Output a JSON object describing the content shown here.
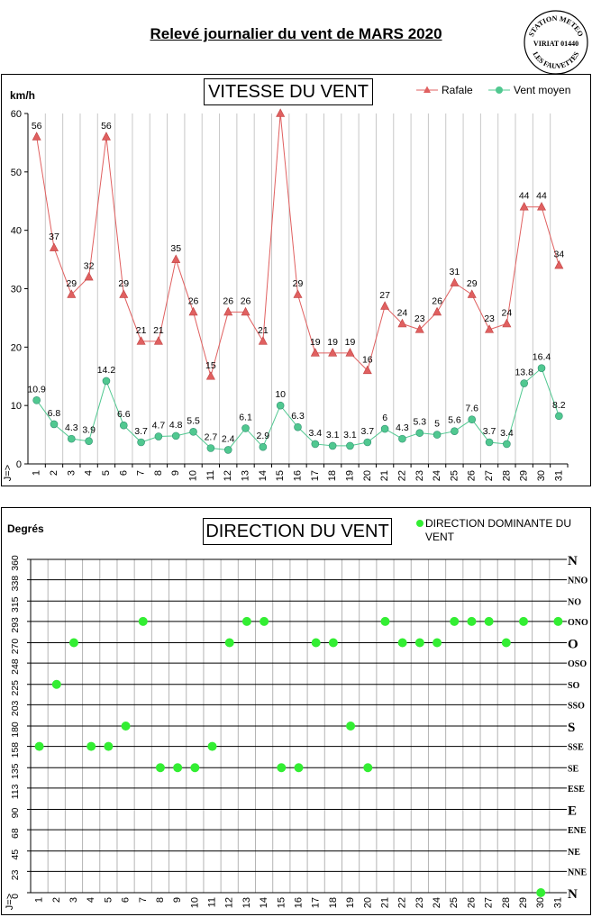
{
  "title": "Relevé journalier du vent de MARS 2020",
  "stamp": {
    "lines": [
      "STATION METEO",
      "VIRIAT 01440",
      "LES FAUVETTES"
    ]
  },
  "colors": {
    "rafale": "#e06060",
    "moyen": "#50c890",
    "direction": "#33ee33"
  },
  "chart_data": [
    {
      "type": "line",
      "title": "VITESSE DU VENT",
      "ylabel": "km/h",
      "x_prefix": "J=>",
      "x": [
        1,
        2,
        3,
        4,
        5,
        6,
        7,
        8,
        9,
        10,
        11,
        12,
        13,
        14,
        15,
        16,
        17,
        18,
        19,
        20,
        21,
        22,
        23,
        24,
        25,
        26,
        27,
        28,
        29,
        30,
        31
      ],
      "ylim": [
        0,
        60
      ],
      "yticks": [
        0,
        10,
        20,
        30,
        40,
        50,
        60
      ],
      "grid": "vertical",
      "legend": "top-right",
      "series": [
        {
          "name": "Rafale",
          "color": "#e06060",
          "values": [
            56,
            37,
            29,
            32,
            56,
            29,
            21,
            21,
            35,
            26,
            15,
            26,
            26,
            21,
            60,
            29,
            19,
            19,
            19,
            16,
            27,
            24,
            23,
            26,
            31,
            29,
            23,
            24,
            44,
            44,
            34
          ]
        },
        {
          "name": "Vent moyen",
          "color": "#50c890",
          "values": [
            10.9,
            6.8,
            4.3,
            3.9,
            14.2,
            6.6,
            3.7,
            4.7,
            4.8,
            5.5,
            2.7,
            2.4,
            6.1,
            2.9,
            10,
            6.3,
            3.4,
            3.1,
            3.1,
            3.7,
            6,
            4.3,
            5.3,
            5,
            5.6,
            7.6,
            3.7,
            3.4,
            13.8,
            16.4,
            8.2
          ]
        }
      ]
    },
    {
      "type": "scatter",
      "title": "DIRECTION DU VENT",
      "ylabel": "Degrés",
      "x_prefix": "J=>",
      "x": [
        1,
        2,
        3,
        4,
        5,
        6,
        7,
        8,
        9,
        10,
        11,
        12,
        13,
        14,
        15,
        16,
        17,
        18,
        19,
        20,
        21,
        22,
        23,
        24,
        25,
        26,
        27,
        28,
        29,
        30,
        31
      ],
      "ylim": [
        0,
        360
      ],
      "yticks": [
        0,
        23,
        45,
        68,
        90,
        113,
        135,
        158,
        180,
        203,
        225,
        248,
        270,
        293,
        315,
        338,
        360
      ],
      "direction_labels": [
        "N",
        "NNE",
        "NE",
        "ENE",
        "E",
        "ESE",
        "SE",
        "SSE",
        "S",
        "SSO",
        "SO",
        "OSO",
        "O",
        "ONO",
        "NO",
        "NNO",
        "N"
      ],
      "legend": "top-right",
      "series": [
        {
          "name": "DIRECTION DOMINANTE DU VENT",
          "color": "#33ee33",
          "values": [
            158,
            225,
            270,
            158,
            158,
            180,
            293,
            135,
            135,
            135,
            158,
            270,
            293,
            293,
            135,
            135,
            270,
            270,
            180,
            135,
            293,
            270,
            270,
            270,
            293,
            293,
            293,
            270,
            293,
            0,
            293
          ]
        }
      ]
    }
  ]
}
